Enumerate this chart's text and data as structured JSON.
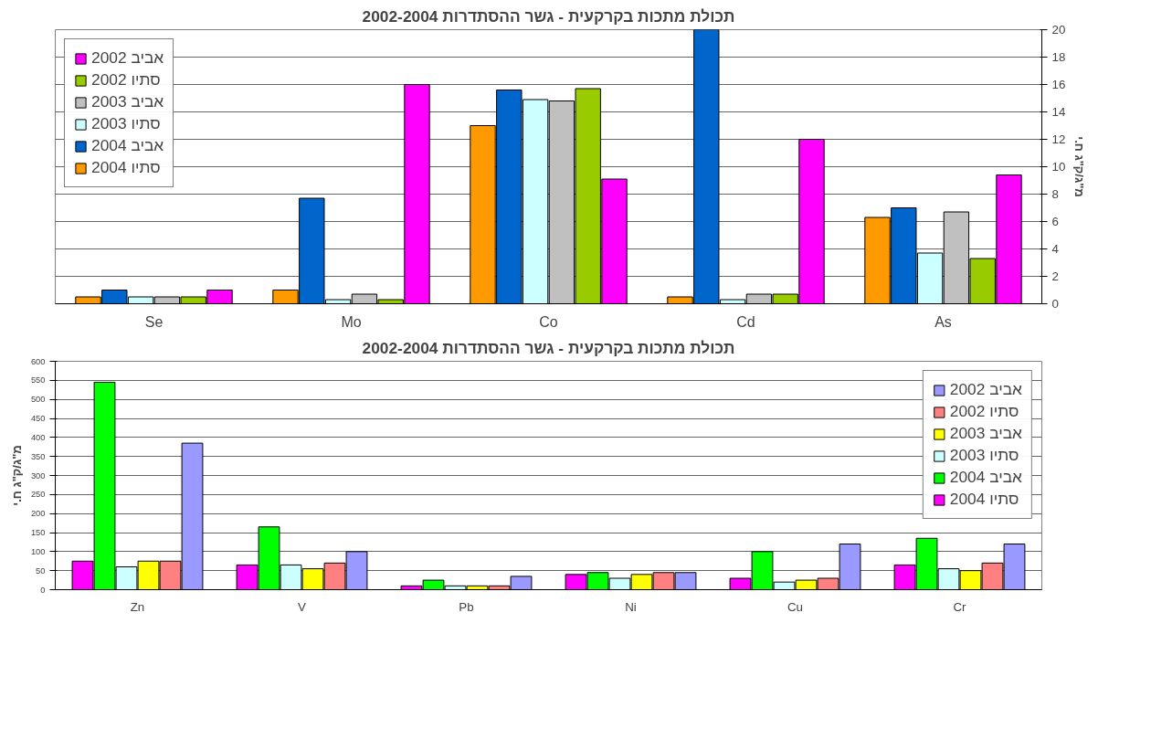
{
  "chart_data": [
    {
      "type": "bar",
      "title": "תכולת מתכות בקרקעית - גשר ההסתדרות 2002-2004",
      "y2label": "מ\"ג/ק\"ג ח.י",
      "categories": [
        "Se",
        "Mo",
        "Co",
        "Cd",
        "As"
      ],
      "y2lim": [
        0,
        20
      ],
      "y2ticks": [
        0,
        2,
        4,
        6,
        8,
        10,
        12,
        14,
        16,
        18,
        20
      ],
      "grid": "y",
      "legend": "top left",
      "series": [
        {
          "name": "אביב 2002",
          "color": "#ff00ff",
          "axis": "y2",
          "values": [
            1.0,
            16.0,
            9.1,
            12.0,
            9.4
          ]
        },
        {
          "name": "סתיו 2002",
          "color": "#99cc00",
          "axis": "y2",
          "values": [
            0.5,
            0.3,
            15.7,
            0.7,
            3.3
          ]
        },
        {
          "name": "אביב 2003",
          "color": "#c0c0c0",
          "axis": "y2",
          "values": [
            0.5,
            0.7,
            14.8,
            0.7,
            6.7
          ]
        },
        {
          "name": "סתיו 2003",
          "color": "#ccffff",
          "axis": "y2",
          "values": [
            0.5,
            0.3,
            14.9,
            0.3,
            3.7
          ]
        },
        {
          "name": "אביב 2004",
          "color": "#0066cc",
          "axis": "y2",
          "values": [
            1.0,
            7.7,
            15.6,
            20.0,
            7.0
          ]
        },
        {
          "name": "סתיו 2004",
          "color": "#ff9900",
          "axis": "y2",
          "values": [
            0.5,
            1.0,
            13.0,
            0.5,
            6.3
          ]
        }
      ]
    },
    {
      "type": "bar",
      "title": "תכולת מתכות בקרקעית - גשר ההסתדרות 2002-2004",
      "ylabel": "מ\"ג/ק\"ג ח.י",
      "categories": [
        "Zn",
        "V",
        "Pb",
        "Ni",
        "Cu",
        "Cr"
      ],
      "ylim": [
        0,
        600
      ],
      "yticks": [
        0,
        50,
        100,
        150,
        200,
        250,
        300,
        350,
        400,
        450,
        500,
        550,
        600
      ],
      "grid": "y",
      "legend": "top right",
      "series": [
        {
          "name": "אביב 2002",
          "color": "#9999ff",
          "values": [
            385,
            100,
            35,
            45,
            120,
            120
          ]
        },
        {
          "name": "סתיו 2002",
          "color": "#ff8080",
          "values": [
            75,
            70,
            10,
            45,
            30,
            70
          ]
        },
        {
          "name": "אביב 2003",
          "color": "#ffff00",
          "values": [
            75,
            55,
            10,
            40,
            25,
            50
          ]
        },
        {
          "name": "סתיו 2003",
          "color": "#ccffff",
          "values": [
            60,
            65,
            10,
            30,
            20,
            55
          ]
        },
        {
          "name": "אביב 2004",
          "color": "#00ff00",
          "values": [
            545,
            165,
            25,
            45,
            100,
            135
          ]
        },
        {
          "name": "סתיו 2004",
          "color": "#ff00ff",
          "values": [
            75,
            65,
            10,
            40,
            30,
            65
          ]
        }
      ]
    }
  ]
}
